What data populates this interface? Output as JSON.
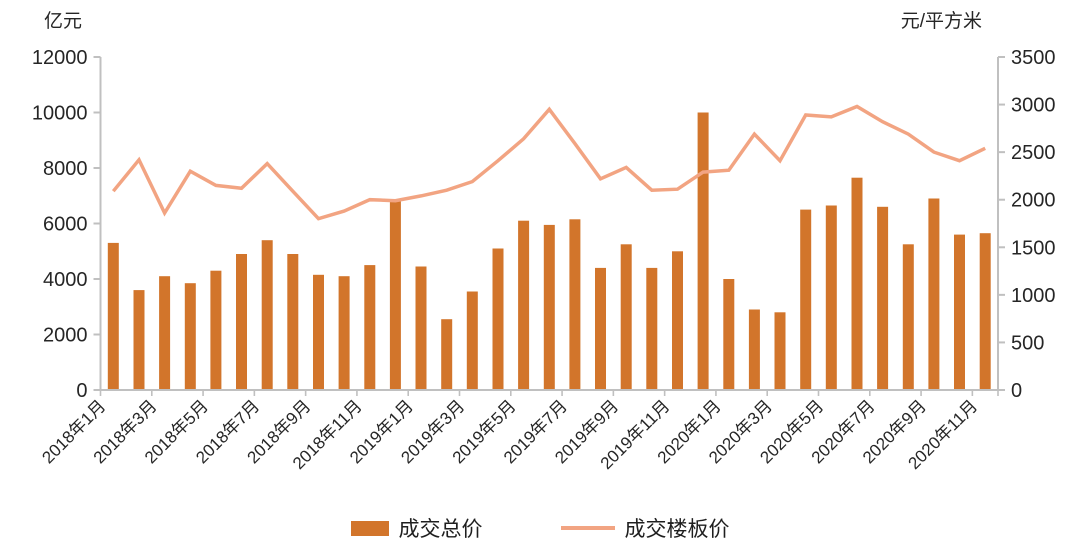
{
  "chart": {
    "left_axis_title": "亿元",
    "right_axis_title": "元/平方米",
    "legend_bar_label": "成交总价",
    "legend_line_label": "成交楼板价",
    "colors": {
      "bar": "#D2752B",
      "line": "#F2A482",
      "axis": "#C0C0C0",
      "text": "#262626"
    }
  },
  "chart_data": {
    "type": "bar",
    "subtype": "dual-axis combo (bar + line)",
    "categories": [
      "2018年1月",
      "2018年2月",
      "2018年3月",
      "2018年4月",
      "2018年5月",
      "2018年6月",
      "2018年7月",
      "2018年8月",
      "2018年9月",
      "2018年10月",
      "2018年11月",
      "2018年12月",
      "2019年1月",
      "2019年2月",
      "2019年3月",
      "2019年4月",
      "2019年5月",
      "2019年6月",
      "2019年7月",
      "2019年8月",
      "2019年9月",
      "2019年10月",
      "2019年11月",
      "2019年12月",
      "2020年1月",
      "2020年2月",
      "2020年3月",
      "2020年4月",
      "2020年5月",
      "2020年6月",
      "2020年7月",
      "2020年8月",
      "2020年9月",
      "2020年10月",
      "2020年11月"
    ],
    "x_tick_labels": [
      "2018年1月",
      "2018年3月",
      "2018年5月",
      "2018年7月",
      "2018年9月",
      "2018年11月",
      "2019年1月",
      "2019年3月",
      "2019年5月",
      "2019年7月",
      "2019年9月",
      "2019年11月",
      "2020年1月",
      "2020年3月",
      "2020年5月",
      "2020年7月",
      "2020年9月",
      "2020年11月"
    ],
    "series": [
      {
        "name": "成交总价",
        "type": "bar",
        "axis": "left",
        "unit": "亿元",
        "values": [
          5300,
          3600,
          4100,
          3850,
          4300,
          4900,
          5400,
          4900,
          4150,
          4100,
          4500,
          6800,
          4450,
          2550,
          3550,
          5100,
          6100,
          5950,
          6150,
          4400,
          5250,
          4400,
          5000,
          10000,
          4000,
          2900,
          2800,
          6500,
          6650,
          7650,
          6600,
          5250,
          6900,
          5600,
          5650
        ]
      },
      {
        "name": "成交楼板价",
        "type": "line",
        "axis": "right",
        "unit": "元/平方米",
        "values": [
          2090,
          2420,
          1860,
          2300,
          2150,
          2120,
          2380,
          2090,
          1800,
          1880,
          2000,
          1990,
          2040,
          2100,
          2190,
          2410,
          2640,
          2950,
          2590,
          2220,
          2340,
          2100,
          2110,
          2290,
          2310,
          2690,
          2410,
          2890,
          2870,
          2980,
          2820,
          2690,
          2500,
          2410,
          2540
        ]
      }
    ],
    "left_axis": {
      "title": "亿元",
      "min": 0,
      "max": 12000,
      "step": 2000
    },
    "right_axis": {
      "title": "元/平方米",
      "min": 0,
      "max": 3500,
      "step": 500
    },
    "grid": false,
    "legend_position": "bottom"
  }
}
